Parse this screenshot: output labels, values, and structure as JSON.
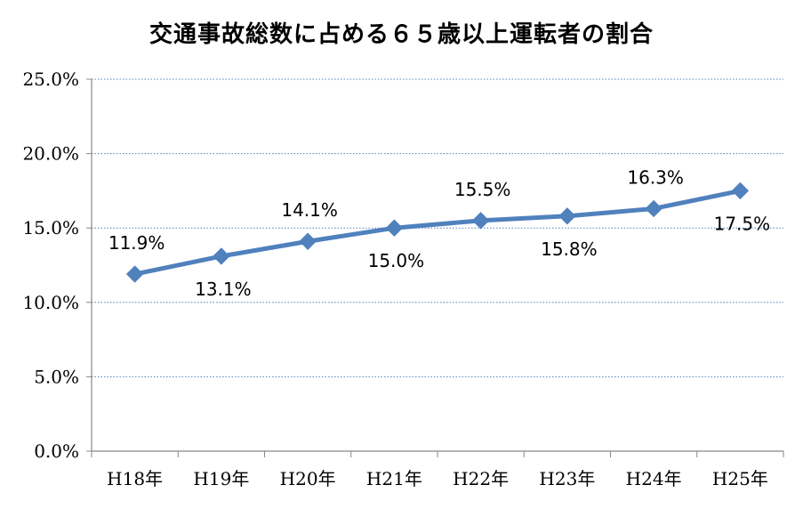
{
  "chart_data": {
    "type": "line",
    "title": "交通事故総数に占める６５歳以上運転者の割合",
    "categories": [
      "H18年",
      "H19年",
      "H20年",
      "H21年",
      "H22年",
      "H23年",
      "H24年",
      "H25年"
    ],
    "series": [
      {
        "values": [
          11.9,
          13.1,
          14.1,
          15.0,
          15.5,
          15.8,
          16.3,
          17.5
        ],
        "labels": [
          "11.9%",
          "13.1%",
          "14.1%",
          "15.0%",
          "15.5%",
          "15.8%",
          "16.3%",
          "17.5%"
        ],
        "label_positions": [
          "above",
          "below",
          "above",
          "below",
          "above",
          "below",
          "above",
          "below"
        ],
        "color": "#4f81bd",
        "marker": "diamond"
      }
    ],
    "y_ticks": [
      "0.0%",
      "5.0%",
      "10.0%",
      "15.0%",
      "20.0%",
      "25.0%"
    ],
    "ylim": [
      0,
      25
    ],
    "grid": true,
    "grid_style": "dotted",
    "grid_color": "#4f81bd",
    "legend": "none"
  }
}
